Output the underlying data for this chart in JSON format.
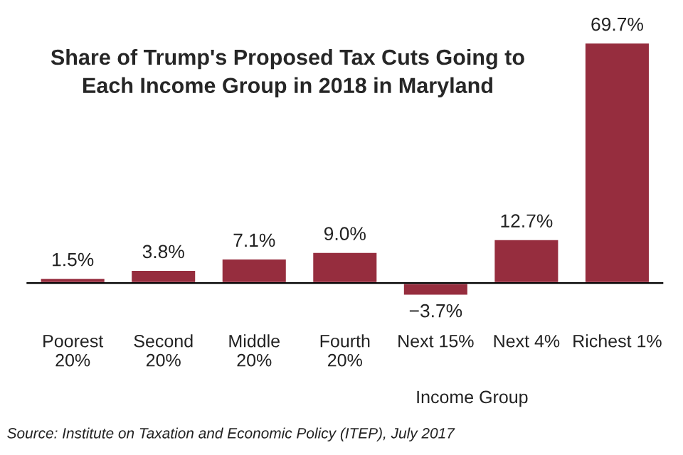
{
  "chart_data": {
    "type": "bar",
    "title": "Share of Trump's Proposed Tax Cuts Going to\nEach Income Group in 2018 in Maryland",
    "xlabel": "Income Group",
    "categories": [
      "Poorest\n20%",
      "Second\n20%",
      "Middle\n20%",
      "Fourth\n20%",
      "Next 15%",
      "Next 4%",
      "Richest 1%"
    ],
    "values": [
      1.5,
      3.8,
      7.1,
      9.0,
      -3.7,
      12.7,
      69.7
    ],
    "value_labels": [
      "1.5%",
      "3.8%",
      "7.1%",
      "9.0%",
      "−3.7%",
      "12.7%",
      "69.7%"
    ],
    "color": "#962d3e",
    "tick_labels": "x",
    "grid": false,
    "legend": false,
    "annotations": [
      "Source: Institute on Taxation and Economic Policy (ITEP), July 2017"
    ]
  }
}
